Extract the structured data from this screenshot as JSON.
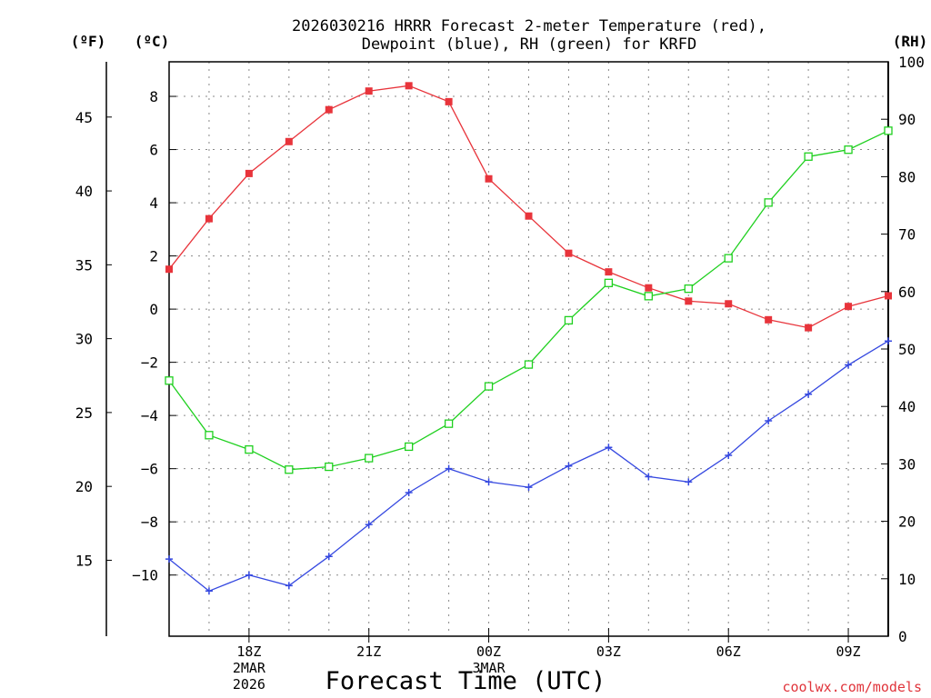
{
  "chart_data": {
    "type": "line",
    "title_line1": "2026030216 HRRR Forecast 2-meter Temperature (red),",
    "title_line2": "Dewpoint (blue), RH (green) for KRFD",
    "unit_labels": {
      "fahrenheit": "(ºF)",
      "celsius": "(ºC)",
      "rh": "(RH)"
    },
    "xlabel": "Forecast Time (UTC)",
    "credit": "coolwx.com/models",
    "x_range_hours": [
      16,
      34
    ],
    "x_hours": [
      16,
      17,
      18,
      19,
      20,
      21,
      22,
      23,
      24,
      25,
      26,
      27,
      28,
      29,
      30,
      31,
      32,
      33,
      34
    ],
    "x_ticks": [
      {
        "hour": 18,
        "labels": [
          "18Z",
          "2MAR",
          "2026"
        ]
      },
      {
        "hour": 21,
        "labels": [
          "21Z"
        ]
      },
      {
        "hour": 24,
        "labels": [
          "00Z",
          "3MAR"
        ]
      },
      {
        "hour": 27,
        "labels": [
          "03Z"
        ]
      },
      {
        "hour": 30,
        "labels": [
          "06Z"
        ]
      },
      {
        "hour": 33,
        "labels": [
          "09Z"
        ]
      }
    ],
    "celsius_axis": {
      "range": [
        -12.3,
        9.3
      ],
      "ticks": [
        "-10",
        "-8",
        "-6",
        "-4",
        "-2",
        "0",
        "2",
        "4",
        "6",
        "8"
      ]
    },
    "fahrenheit_axis": {
      "ticks": [
        "15",
        "20",
        "25",
        "30",
        "35",
        "40",
        "45"
      ]
    },
    "rh_axis": {
      "range": [
        0,
        100
      ],
      "ticks": [
        "0",
        "10",
        "20",
        "30",
        "40",
        "50",
        "60",
        "70",
        "80",
        "90",
        "100"
      ]
    },
    "series": [
      {
        "name": "Temperature",
        "units": "C",
        "color": "#e8343b",
        "marker": "filled-square",
        "values": [
          1.5,
          3.4,
          5.1,
          6.3,
          7.5,
          8.2,
          8.4,
          7.8,
          4.9,
          3.5,
          2.1,
          1.4,
          0.8,
          0.3,
          0.2,
          -0.4,
          -0.7,
          0.1,
          0.5
        ]
      },
      {
        "name": "Dewpoint",
        "units": "C",
        "color": "#3548e0",
        "marker": "plus",
        "values": [
          -9.4,
          -10.6,
          -10.0,
          -10.4,
          -9.3,
          -8.1,
          -6.9,
          -6.0,
          -6.5,
          -6.7,
          -5.9,
          -5.2,
          -6.3,
          -6.5,
          -5.5,
          -4.2,
          -3.2,
          -2.1,
          -1.2
        ]
      },
      {
        "name": "RH",
        "units": "%",
        "color": "#1fd01f",
        "marker": "open-square",
        "values": [
          44.5,
          35.0,
          32.5,
          29.0,
          29.5,
          31.0,
          33.0,
          37.0,
          43.5,
          47.3,
          55.0,
          61.5,
          59.2,
          60.5,
          65.8,
          75.5,
          83.5,
          84.7,
          88.0
        ]
      }
    ]
  }
}
